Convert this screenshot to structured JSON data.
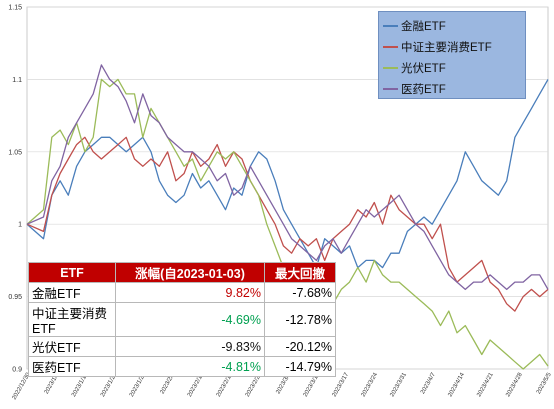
{
  "chart_data": {
    "type": "line",
    "y_ticks": [
      "1.15",
      "1.1",
      "1.05",
      "1",
      "0.95",
      "0.9"
    ],
    "ylim": [
      0.9,
      1.15
    ],
    "x_ticks": [
      "2022/12/30",
      "2023/1/6",
      "2023/1/13",
      "2023/1/20",
      "2023/1/27",
      "2023/2/3",
      "2023/2/10",
      "2023/2/17",
      "2023/2/24",
      "2023/3/3",
      "2023/3/10",
      "2023/3/17",
      "2023/3/24",
      "2023/3/31",
      "2023/4/7",
      "2023/4/14",
      "2023/4/21",
      "2023/4/28",
      "2023/5/5"
    ],
    "grid": true,
    "legend_position": "top-right",
    "series": [
      {
        "name": "金融ETF",
        "color": "#4a7ebb",
        "points": [
          [
            0,
            1.0
          ],
          [
            2,
            0.99
          ],
          [
            3,
            1.02
          ],
          [
            4,
            1.03
          ],
          [
            5,
            1.02
          ],
          [
            6,
            1.04
          ],
          [
            7,
            1.05
          ],
          [
            8,
            1.055
          ],
          [
            9,
            1.06
          ],
          [
            10,
            1.06
          ],
          [
            11,
            1.055
          ],
          [
            12,
            1.05
          ],
          [
            14,
            1.06
          ],
          [
            15,
            1.05
          ],
          [
            16,
            1.03
          ],
          [
            17,
            1.02
          ],
          [
            18,
            1.015
          ],
          [
            19,
            1.02
          ],
          [
            20,
            1.035
          ],
          [
            21,
            1.025
          ],
          [
            22,
            1.03
          ],
          [
            23,
            1.02
          ],
          [
            24,
            1.01
          ],
          [
            25,
            1.025
          ],
          [
            26,
            1.02
          ],
          [
            27,
            1.04
          ],
          [
            28,
            1.05
          ],
          [
            29,
            1.045
          ],
          [
            30,
            1.03
          ],
          [
            31,
            1.01
          ],
          [
            32,
            1.0
          ],
          [
            33,
            0.99
          ],
          [
            34,
            0.98
          ],
          [
            35,
            0.97
          ],
          [
            36,
            0.99
          ],
          [
            37,
            0.985
          ],
          [
            38,
            0.98
          ],
          [
            39,
            0.985
          ],
          [
            40,
            0.97
          ],
          [
            41,
            0.975
          ],
          [
            42,
            0.975
          ],
          [
            43,
            0.97
          ],
          [
            44,
            0.98
          ],
          [
            45,
            0.98
          ],
          [
            46,
            0.995
          ],
          [
            47,
            1.0
          ],
          [
            48,
            1.005
          ],
          [
            49,
            1.0
          ],
          [
            50,
            1.01
          ],
          [
            51,
            1.02
          ],
          [
            52,
            1.03
          ],
          [
            53,
            1.05
          ],
          [
            54,
            1.04
          ],
          [
            55,
            1.03
          ],
          [
            56,
            1.025
          ],
          [
            57,
            1.02
          ],
          [
            58,
            1.03
          ],
          [
            59,
            1.06
          ],
          [
            60,
            1.07
          ],
          [
            61,
            1.08
          ],
          [
            62,
            1.09
          ],
          [
            63,
            1.1
          ]
        ]
      },
      {
        "name": "中证主要消费ETF",
        "color": "#c0504d",
        "points": [
          [
            0,
            1.0
          ],
          [
            2,
            0.995
          ],
          [
            3,
            1.02
          ],
          [
            4,
            1.035
          ],
          [
            5,
            1.045
          ],
          [
            6,
            1.055
          ],
          [
            7,
            1.06
          ],
          [
            8,
            1.05
          ],
          [
            9,
            1.045
          ],
          [
            10,
            1.05
          ],
          [
            11,
            1.055
          ],
          [
            12,
            1.06
          ],
          [
            13,
            1.045
          ],
          [
            14,
            1.04
          ],
          [
            15,
            1.045
          ],
          [
            16,
            1.04
          ],
          [
            17,
            1.05
          ],
          [
            18,
            1.03
          ],
          [
            19,
            1.035
          ],
          [
            20,
            1.05
          ],
          [
            21,
            1.04
          ],
          [
            22,
            1.045
          ],
          [
            23,
            1.055
          ],
          [
            24,
            1.04
          ],
          [
            25,
            1.05
          ],
          [
            26,
            1.045
          ],
          [
            27,
            1.03
          ],
          [
            28,
            1.02
          ],
          [
            29,
            1.01
          ],
          [
            30,
            1.0
          ],
          [
            31,
            0.985
          ],
          [
            32,
            0.98
          ],
          [
            33,
            0.99
          ],
          [
            34,
            0.985
          ],
          [
            35,
            0.99
          ],
          [
            36,
            0.975
          ],
          [
            37,
            0.99
          ],
          [
            38,
            0.995
          ],
          [
            39,
            1.0
          ],
          [
            40,
            1.01
          ],
          [
            41,
            1.005
          ],
          [
            42,
            1.015
          ],
          [
            43,
            1.0
          ],
          [
            44,
            1.02
          ],
          [
            45,
            1.01
          ],
          [
            46,
            1.005
          ],
          [
            47,
            1.0
          ],
          [
            48,
            1.0
          ],
          [
            49,
            0.99
          ],
          [
            50,
            1.0
          ],
          [
            51,
            0.97
          ],
          [
            52,
            0.96
          ],
          [
            53,
            0.965
          ],
          [
            54,
            0.97
          ],
          [
            55,
            0.975
          ],
          [
            56,
            0.96
          ],
          [
            57,
            0.955
          ],
          [
            58,
            0.945
          ],
          [
            59,
            0.94
          ],
          [
            60,
            0.95
          ],
          [
            61,
            0.955
          ],
          [
            62,
            0.95
          ],
          [
            63,
            0.955
          ]
        ]
      },
      {
        "name": "光伏ETF",
        "color": "#9bbb59",
        "points": [
          [
            0,
            1.0
          ],
          [
            2,
            1.01
          ],
          [
            3,
            1.06
          ],
          [
            4,
            1.065
          ],
          [
            5,
            1.055
          ],
          [
            6,
            1.07
          ],
          [
            7,
            1.05
          ],
          [
            8,
            1.06
          ],
          [
            9,
            1.1
          ],
          [
            10,
            1.095
          ],
          [
            11,
            1.1
          ],
          [
            12,
            1.09
          ],
          [
            13,
            1.09
          ],
          [
            14,
            1.06
          ],
          [
            15,
            1.08
          ],
          [
            16,
            1.07
          ],
          [
            17,
            1.06
          ],
          [
            18,
            1.05
          ],
          [
            19,
            1.04
          ],
          [
            20,
            1.045
          ],
          [
            21,
            1.03
          ],
          [
            22,
            1.04
          ],
          [
            23,
            1.05
          ],
          [
            24,
            1.045
          ],
          [
            25,
            1.05
          ],
          [
            26,
            1.04
          ],
          [
            27,
            1.03
          ],
          [
            28,
            1.02
          ],
          [
            29,
            1.0
          ],
          [
            30,
            0.985
          ],
          [
            31,
            0.97
          ],
          [
            32,
            0.96
          ],
          [
            33,
            0.95
          ],
          [
            34,
            0.955
          ],
          [
            35,
            0.96
          ],
          [
            36,
            0.955
          ],
          [
            37,
            0.945
          ],
          [
            38,
            0.955
          ],
          [
            39,
            0.96
          ],
          [
            40,
            0.97
          ],
          [
            41,
            0.96
          ],
          [
            42,
            0.975
          ],
          [
            43,
            0.965
          ],
          [
            44,
            0.96
          ],
          [
            45,
            0.96
          ],
          [
            46,
            0.955
          ],
          [
            47,
            0.95
          ],
          [
            48,
            0.945
          ],
          [
            49,
            0.94
          ],
          [
            50,
            0.93
          ],
          [
            51,
            0.94
          ],
          [
            52,
            0.925
          ],
          [
            53,
            0.93
          ],
          [
            54,
            0.92
          ],
          [
            55,
            0.91
          ],
          [
            56,
            0.92
          ],
          [
            57,
            0.915
          ],
          [
            58,
            0.91
          ],
          [
            59,
            0.905
          ],
          [
            60,
            0.9
          ],
          [
            61,
            0.905
          ],
          [
            62,
            0.91
          ],
          [
            63,
            0.902
          ]
        ]
      },
      {
        "name": "医药ETF",
        "color": "#8064a2",
        "points": [
          [
            0,
            1.0
          ],
          [
            2,
            1.005
          ],
          [
            3,
            1.03
          ],
          [
            4,
            1.04
          ],
          [
            5,
            1.06
          ],
          [
            6,
            1.07
          ],
          [
            7,
            1.08
          ],
          [
            8,
            1.09
          ],
          [
            9,
            1.11
          ],
          [
            10,
            1.1
          ],
          [
            11,
            1.095
          ],
          [
            12,
            1.085
          ],
          [
            13,
            1.07
          ],
          [
            14,
            1.09
          ],
          [
            15,
            1.075
          ],
          [
            16,
            1.07
          ],
          [
            17,
            1.06
          ],
          [
            18,
            1.055
          ],
          [
            19,
            1.05
          ],
          [
            20,
            1.05
          ],
          [
            21,
            1.045
          ],
          [
            22,
            1.04
          ],
          [
            23,
            1.03
          ],
          [
            24,
            1.035
          ],
          [
            25,
            1.02
          ],
          [
            26,
            1.025
          ],
          [
            27,
            1.04
          ],
          [
            28,
            1.03
          ],
          [
            29,
            1.02
          ],
          [
            30,
            1.01
          ],
          [
            31,
            1.0
          ],
          [
            32,
            0.99
          ],
          [
            33,
            0.985
          ],
          [
            34,
            0.98
          ],
          [
            35,
            0.975
          ],
          [
            36,
            0.985
          ],
          [
            37,
            0.99
          ],
          [
            38,
            0.98
          ],
          [
            39,
            0.99
          ],
          [
            40,
            1.0
          ],
          [
            41,
            1.01
          ],
          [
            42,
            1.005
          ],
          [
            43,
            1.01
          ],
          [
            44,
            1.015
          ],
          [
            45,
            1.02
          ],
          [
            46,
            1.01
          ],
          [
            47,
            1.0
          ],
          [
            48,
            0.995
          ],
          [
            49,
            0.985
          ],
          [
            50,
            0.975
          ],
          [
            51,
            0.965
          ],
          [
            52,
            0.96
          ],
          [
            53,
            0.955
          ],
          [
            54,
            0.96
          ],
          [
            55,
            0.96
          ],
          [
            56,
            0.965
          ],
          [
            57,
            0.96
          ],
          [
            58,
            0.955
          ],
          [
            59,
            0.96
          ],
          [
            60,
            0.96
          ],
          [
            61,
            0.965
          ],
          [
            62,
            0.965
          ],
          [
            63,
            0.955
          ]
        ]
      }
    ]
  },
  "legend": {
    "items": [
      {
        "label": "金融ETF",
        "color": "#4a7ebb"
      },
      {
        "label": "中证主要消费ETF",
        "color": "#c0504d"
      },
      {
        "label": "光伏ETF",
        "color": "#9bbb59"
      },
      {
        "label": "医药ETF",
        "color": "#8064a2"
      }
    ]
  },
  "stats_table": {
    "headers": [
      "ETF",
      "涨幅(自2023-01-03)",
      "最大回撤"
    ],
    "rows": [
      {
        "name": "金融ETF",
        "gain": "9.82%",
        "drawdown": "-7.68%",
        "gain_color": "pos"
      },
      {
        "name": "中证主要消费ETF",
        "gain": "-4.69%",
        "drawdown": "-12.78%",
        "gain_color": "neg"
      },
      {
        "name": "光伏ETF",
        "gain": "-9.83%",
        "drawdown": "-20.12%",
        "gain_color": "plain"
      },
      {
        "name": "医药ETF",
        "gain": "-4.81%",
        "drawdown": "-14.79%",
        "gain_color": "neg"
      }
    ]
  }
}
